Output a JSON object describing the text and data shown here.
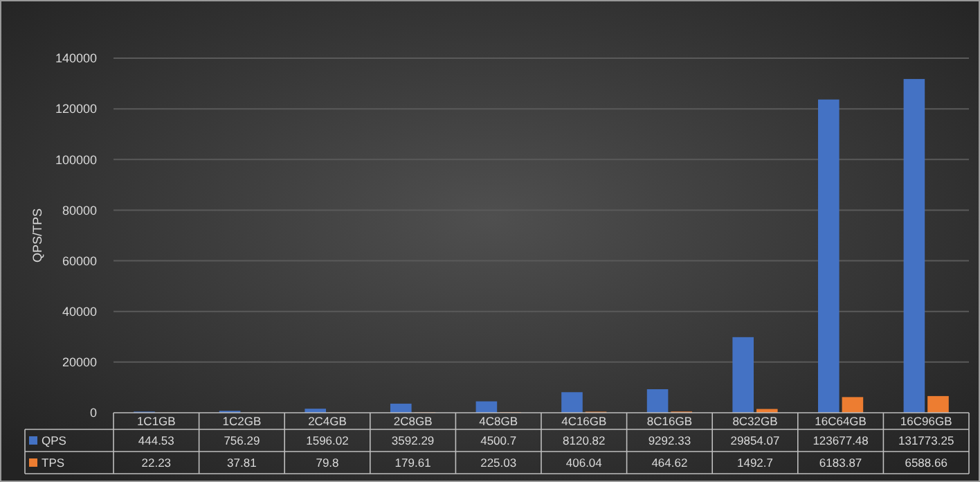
{
  "chart_data": {
    "type": "bar",
    "ylabel": "QPS/TPS",
    "categories": [
      "1C1GB",
      "1C2GB",
      "2C4GB",
      "2C8GB",
      "4C8GB",
      "4C16GB",
      "8C16GB",
      "8C32GB",
      "16C64GB",
      "16C96GB"
    ],
    "series": [
      {
        "name": "QPS",
        "color": "#4472c4",
        "values": [
          444.53,
          756.29,
          1596.02,
          3592.29,
          4500.7,
          8120.82,
          9292.33,
          29854.07,
          123677.48,
          131773.25
        ]
      },
      {
        "name": "TPS",
        "color": "#ed7d31",
        "values": [
          22.23,
          37.81,
          79.8,
          179.61,
          225.03,
          406.04,
          464.62,
          1492.7,
          6183.87,
          6588.66
        ]
      }
    ],
    "ylim": [
      0,
      140000
    ],
    "yticks": [
      0,
      20000,
      40000,
      60000,
      80000,
      100000,
      120000,
      140000
    ],
    "grid": "y",
    "legend": "bottom",
    "data_labels": true
  }
}
